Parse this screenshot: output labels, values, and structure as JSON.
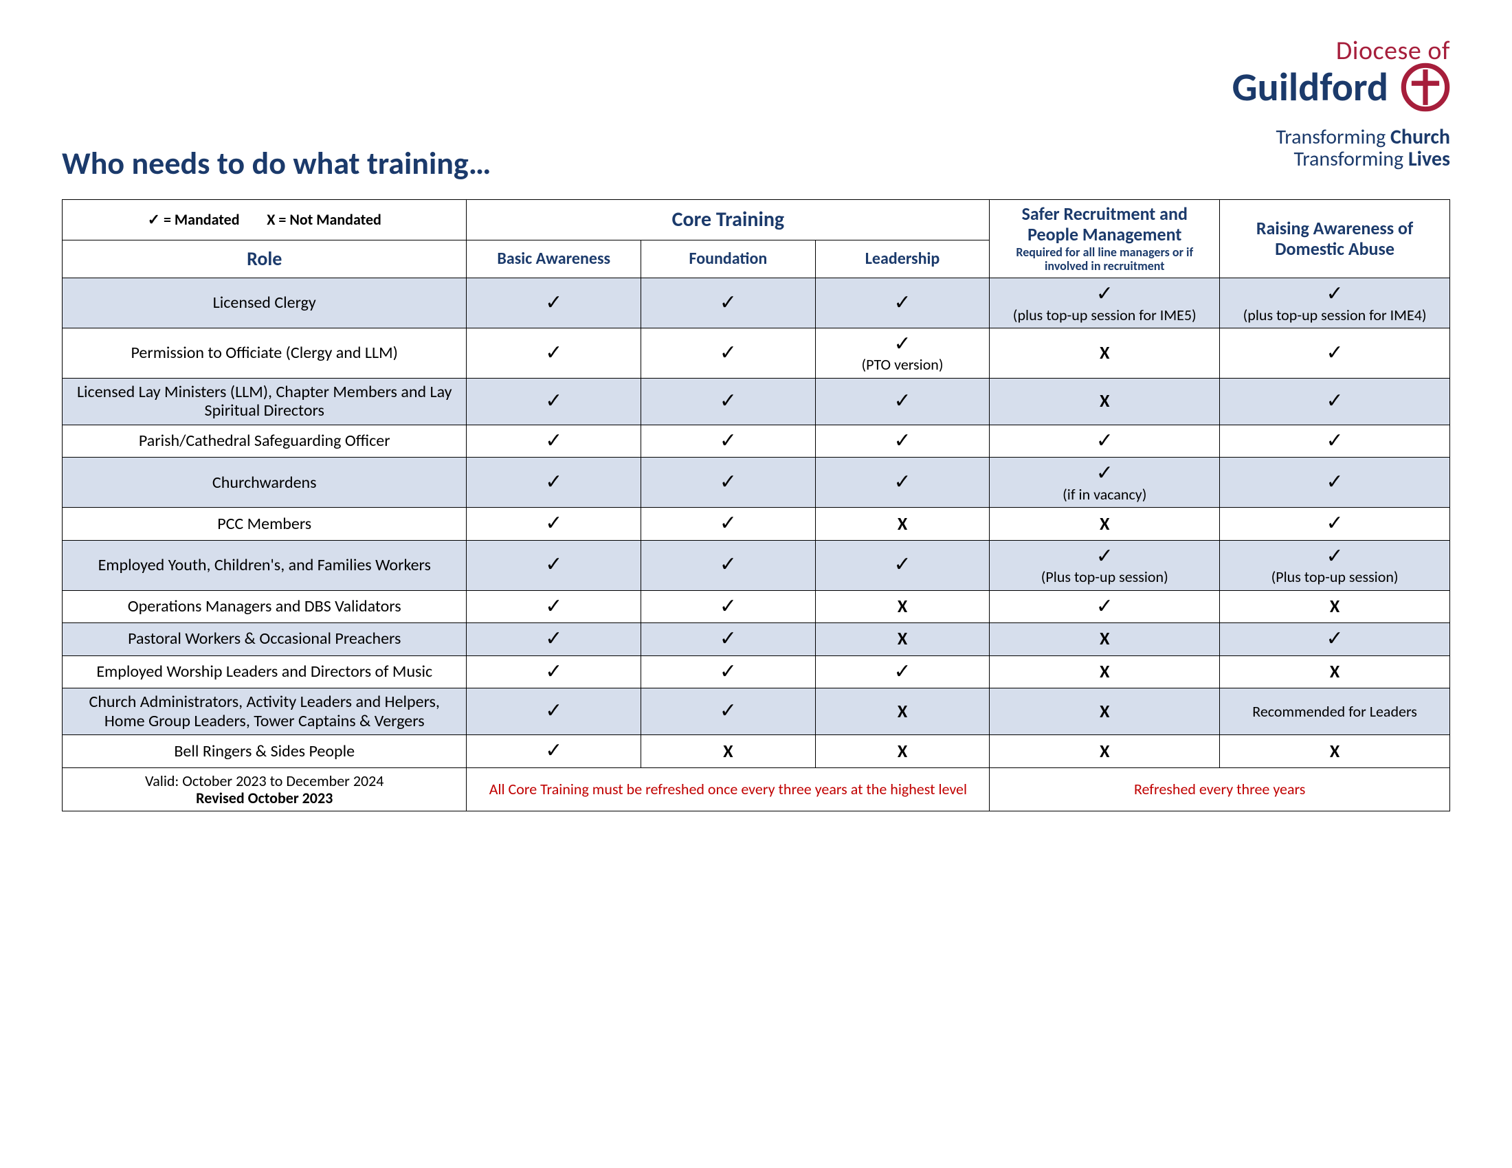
{
  "logo": {
    "line1": "Diocese of",
    "line2": "Guildford",
    "sub1_a": "Transforming ",
    "sub1_b": "Church",
    "sub2_a": "Transforming ",
    "sub2_b": "Lives",
    "mark_color": "#a61e3b"
  },
  "title": "Who needs to do what training…",
  "legend": "✓ = Mandated        X = Not Mandated",
  "headers": {
    "core": "Core Training",
    "role": "Role",
    "basic": "Basic Awareness",
    "foundation": "Foundation",
    "leadership": "Leadership",
    "safer": "Safer Recruitment and People Management",
    "safer_sub": "Required for all line managers or if involved in recruitment",
    "domestic": "Raising Awareness of Domestic Abuse"
  },
  "rows": [
    {
      "shade": true,
      "role": "Licensed Clergy",
      "c": [
        {
          "m": "✓"
        },
        {
          "m": "✓"
        },
        {
          "m": "✓"
        },
        {
          "m": "✓",
          "n": "(plus top-up session for IME5)"
        },
        {
          "m": "✓",
          "n": "(plus top-up session for IME4)"
        }
      ]
    },
    {
      "shade": false,
      "role": "Permission to Officiate (Clergy and LLM)",
      "c": [
        {
          "m": "✓"
        },
        {
          "m": "✓"
        },
        {
          "m": "✓",
          "n": "(PTO version)"
        },
        {
          "m": "X"
        },
        {
          "m": "✓"
        }
      ]
    },
    {
      "shade": true,
      "role": "Licensed Lay Ministers (LLM), Chapter Members and Lay Spiritual Directors",
      "c": [
        {
          "m": "✓"
        },
        {
          "m": "✓"
        },
        {
          "m": "✓"
        },
        {
          "m": "X"
        },
        {
          "m": "✓"
        }
      ]
    },
    {
      "shade": false,
      "role": "Parish/Cathedral Safeguarding Officer",
      "c": [
        {
          "m": "✓"
        },
        {
          "m": "✓"
        },
        {
          "m": "✓"
        },
        {
          "m": "✓"
        },
        {
          "m": "✓"
        }
      ]
    },
    {
      "shade": true,
      "role": "Churchwardens",
      "c": [
        {
          "m": "✓"
        },
        {
          "m": "✓"
        },
        {
          "m": "✓"
        },
        {
          "m": "✓",
          "n": "(if in vacancy)"
        },
        {
          "m": "✓"
        }
      ]
    },
    {
      "shade": false,
      "role": "PCC Members",
      "c": [
        {
          "m": "✓"
        },
        {
          "m": "✓"
        },
        {
          "m": "X"
        },
        {
          "m": "X"
        },
        {
          "m": "✓"
        }
      ]
    },
    {
      "shade": true,
      "role": "Employed Youth, Children's, and Families Workers",
      "c": [
        {
          "m": "✓"
        },
        {
          "m": "✓"
        },
        {
          "m": "✓"
        },
        {
          "m": "✓",
          "n": "(Plus top-up session)"
        },
        {
          "m": "✓",
          "n": "(Plus top-up session)"
        }
      ]
    },
    {
      "shade": false,
      "role": "Operations Managers and DBS Validators",
      "c": [
        {
          "m": "✓"
        },
        {
          "m": "✓"
        },
        {
          "m": "X"
        },
        {
          "m": "✓"
        },
        {
          "m": "X"
        }
      ]
    },
    {
      "shade": true,
      "role": "Pastoral Workers & Occasional Preachers",
      "c": [
        {
          "m": "✓"
        },
        {
          "m": "✓"
        },
        {
          "m": "X"
        },
        {
          "m": "X"
        },
        {
          "m": "✓"
        }
      ]
    },
    {
      "shade": false,
      "role": "Employed Worship Leaders and Directors of Music",
      "c": [
        {
          "m": "✓"
        },
        {
          "m": "✓"
        },
        {
          "m": "✓"
        },
        {
          "m": "X"
        },
        {
          "m": "X"
        }
      ]
    },
    {
      "shade": true,
      "role": "Church Administrators, Activity Leaders and Helpers, Home Group Leaders, Tower Captains & Vergers",
      "c": [
        {
          "m": "✓"
        },
        {
          "m": "✓"
        },
        {
          "m": "X"
        },
        {
          "m": "X"
        },
        {
          "t": "Recommended for Leaders"
        }
      ]
    },
    {
      "shade": false,
      "role": "Bell Ringers & Sides People",
      "c": [
        {
          "m": "✓"
        },
        {
          "m": "X"
        },
        {
          "m": "X"
        },
        {
          "m": "X"
        },
        {
          "m": "X"
        }
      ]
    }
  ],
  "footer": {
    "valid": "Valid: October 2023 to December 2024",
    "revised": "Revised October 2023",
    "core_note": "All Core Training must be refreshed once every three years at the highest level",
    "right_note": "Refreshed every three years"
  },
  "colors": {
    "brand_blue": "#1b3a6b",
    "brand_red": "#a61e3b",
    "shade": "#d6deec",
    "note_red": "#c00000"
  }
}
